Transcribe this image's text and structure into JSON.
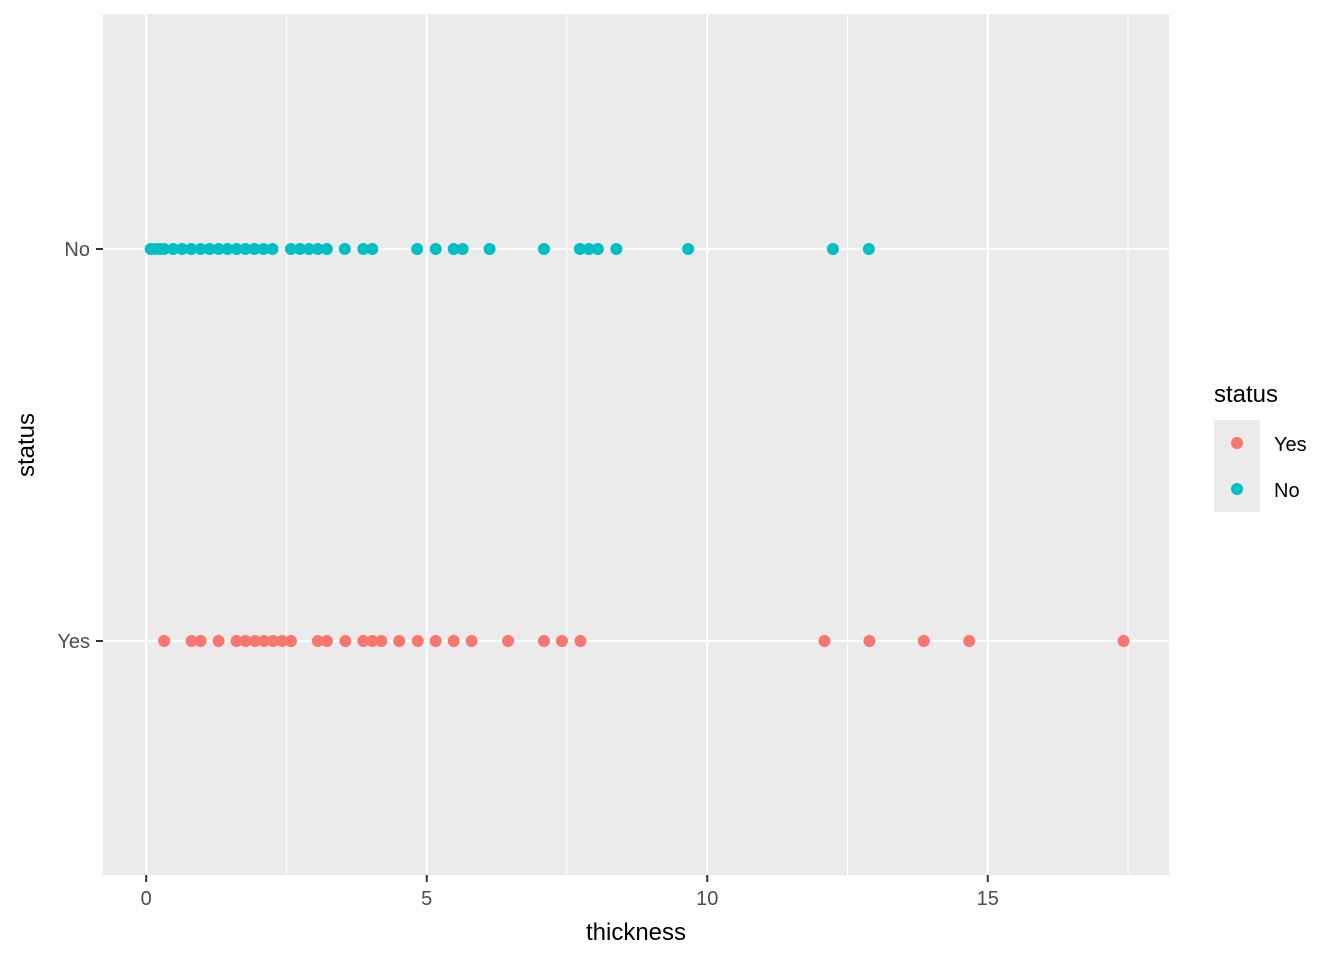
{
  "chart_data": {
    "type": "scatter",
    "xlabel": "thickness",
    "ylabel": "status",
    "xlim": [
      -0.77,
      18.23
    ],
    "x_ticks": [
      0,
      5,
      10,
      15
    ],
    "x_tick_labels": [
      "0",
      "5",
      "10",
      "15"
    ],
    "categories": [
      "Yes",
      "No"
    ],
    "grid": true,
    "legend": {
      "title": "status",
      "position": "right",
      "entries": [
        "Yes",
        "No"
      ]
    },
    "colors": {
      "Yes": "#F8766D",
      "No": "#00BFC4",
      "panel": "#EBEBEB",
      "grid": "#FFFFFF"
    },
    "series": [
      {
        "name": "No",
        "y": "No",
        "x": [
          0.08,
          0.16,
          0.24,
          0.32,
          0.48,
          0.64,
          0.8,
          0.97,
          1.13,
          1.29,
          1.45,
          1.61,
          1.77,
          1.93,
          2.09,
          2.25,
          2.58,
          2.74,
          2.9,
          3.06,
          3.22,
          3.54,
          3.87,
          4.03,
          4.83,
          5.16,
          5.48,
          5.64,
          6.12,
          7.09,
          7.73,
          7.89,
          8.05,
          8.38,
          9.66,
          12.24,
          12.88
        ]
      },
      {
        "name": "Yes",
        "y": "Yes",
        "x": [
          0.32,
          0.81,
          0.97,
          1.29,
          1.61,
          1.77,
          1.94,
          2.1,
          2.26,
          2.42,
          2.58,
          3.06,
          3.22,
          3.55,
          3.87,
          4.03,
          4.19,
          4.51,
          4.84,
          5.16,
          5.48,
          5.8,
          6.45,
          7.09,
          7.41,
          7.74,
          12.09,
          12.89,
          13.86,
          14.67,
          17.42
        ]
      }
    ]
  }
}
